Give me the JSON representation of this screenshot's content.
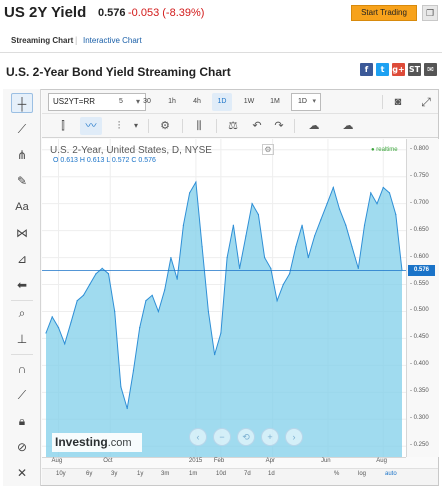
{
  "header": {
    "symbol": "US 2Y Yield",
    "price": "0.576",
    "change": "-0.053 (-8.39%)",
    "trade_button": "Start Trading",
    "share_icon": "copy-icon"
  },
  "tabs": [
    "Streaming Chart",
    "Interactive Chart"
  ],
  "page_title": "U.S. 2-Year Bond Yield Streaming Chart",
  "share_buttons": [
    {
      "label": "f",
      "color": "#3b5998",
      "name": "facebook-icon"
    },
    {
      "label": "t",
      "color": "#1da1f2",
      "name": "twitter-icon"
    },
    {
      "label": "g+",
      "color": "#dd4b39",
      "name": "googleplus-icon"
    },
    {
      "label": "ST",
      "color": "#555555",
      "name": "stocktwits-icon"
    },
    {
      "label": "✉",
      "color": "#555555",
      "name": "email-icon"
    }
  ],
  "toolbar": {
    "symbol": "US2YT=RR",
    "intervals": [
      "5",
      "30",
      "1h",
      "4h",
      "1D",
      "1W",
      "1M"
    ],
    "active_interval": "1D",
    "interval_select": "1D"
  },
  "chart_title": "U.S. 2-Year, United States, D, NYSE",
  "ohlc": "O 0.613  H 0.613  L 0.572  C 0.576",
  "realtime_label": "realtime",
  "logo": {
    "brand": "Investing",
    "suffix": ".com"
  },
  "price_axis": [
    "0.800",
    "0.750",
    "0.700",
    "0.650",
    "0.600",
    "0.550",
    "0.500",
    "0.450",
    "0.400",
    "0.350",
    "0.300",
    "0.250"
  ],
  "last_price_badge": "0.576",
  "time_axis": [
    "Aug",
    "Oct",
    "2015",
    "Feb",
    "Apr",
    "Jun",
    "Aug"
  ],
  "range_buttons": [
    "10y",
    "6y",
    "3y",
    "1y",
    "3m",
    "1m",
    "10d",
    "7d",
    "1d"
  ],
  "scale_buttons": [
    "%",
    "log",
    "auto"
  ],
  "colors": {
    "series_line": "#2f8fd6",
    "series_fill": "#80cfea",
    "accent": "#1a73c8",
    "negative": "#d21a1a",
    "trade": "#f7a21b"
  },
  "chart_data": {
    "type": "area",
    "title": "U.S. 2-Year, United States, D, NYSE",
    "xlabel": "",
    "ylabel": "",
    "ylim": [
      0.23,
      0.82
    ],
    "x_range": [
      "2014-07-21",
      "2015-08-24"
    ],
    "x_ticks": [
      "Aug",
      "Oct",
      "2015",
      "Feb",
      "Apr",
      "Jun",
      "Aug"
    ],
    "grid": true,
    "last_value": 0.576,
    "x": [
      "2014-07-21",
      "2014-07-28",
      "2014-08-04",
      "2014-08-11",
      "2014-08-18",
      "2014-08-25",
      "2014-09-01",
      "2014-09-08",
      "2014-09-15",
      "2014-09-22",
      "2014-09-29",
      "2014-10-06",
      "2014-10-13",
      "2014-10-20",
      "2014-10-27",
      "2014-11-03",
      "2014-11-10",
      "2014-11-17",
      "2014-11-24",
      "2014-12-01",
      "2014-12-08",
      "2014-12-15",
      "2014-12-22",
      "2014-12-29",
      "2015-01-05",
      "2015-01-12",
      "2015-01-19",
      "2015-01-26",
      "2015-02-02",
      "2015-02-09",
      "2015-02-16",
      "2015-02-23",
      "2015-03-02",
      "2015-03-09",
      "2015-03-16",
      "2015-03-23",
      "2015-03-30",
      "2015-04-06",
      "2015-04-13",
      "2015-04-20",
      "2015-04-27",
      "2015-05-04",
      "2015-05-11",
      "2015-05-18",
      "2015-05-25",
      "2015-06-01",
      "2015-06-08",
      "2015-06-15",
      "2015-06-22",
      "2015-06-29",
      "2015-07-06",
      "2015-07-13",
      "2015-07-20",
      "2015-07-27",
      "2015-08-03",
      "2015-08-10",
      "2015-08-17",
      "2015-08-24"
    ],
    "series": [
      {
        "values": [
          0.46,
          0.49,
          0.47,
          0.44,
          0.48,
          0.52,
          0.53,
          0.55,
          0.57,
          0.58,
          0.57,
          0.5,
          0.36,
          0.32,
          0.39,
          0.47,
          0.52,
          0.53,
          0.5,
          0.54,
          0.6,
          0.56,
          0.66,
          0.72,
          0.74,
          0.62,
          0.5,
          0.42,
          0.46,
          0.6,
          0.66,
          0.58,
          0.64,
          0.7,
          0.68,
          0.6,
          0.58,
          0.52,
          0.55,
          0.57,
          0.62,
          0.66,
          0.6,
          0.64,
          0.67,
          0.7,
          0.73,
          0.69,
          0.66,
          0.62,
          0.58,
          0.66,
          0.72,
          0.7,
          0.73,
          0.72,
          0.68,
          0.576
        ]
      }
    ]
  }
}
